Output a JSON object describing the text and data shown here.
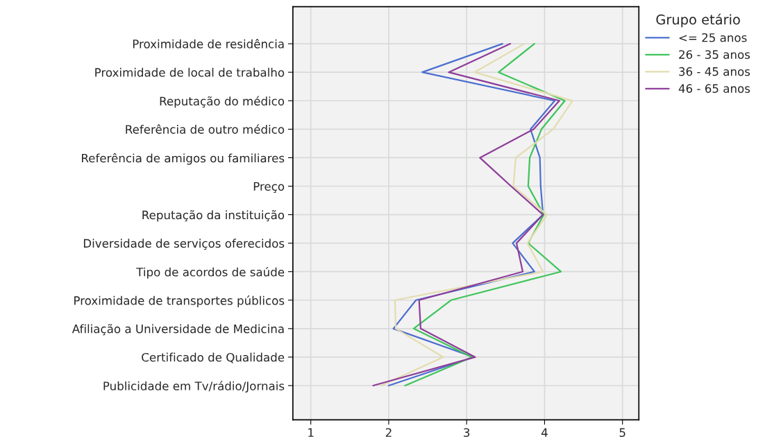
{
  "chart_data": {
    "type": "line",
    "orientation": "horizontal",
    "legend_title": "Grupo etário",
    "legend": "top right",
    "grid": true,
    "marker": "none",
    "line_style": "solid",
    "categories": [
      "Proximidade de residência",
      "Proximidade de local de trabalho",
      "Reputação do médico",
      "Referência de outro médico",
      "Referência de amigos ou familiares",
      "Preço",
      "Reputação da instituição",
      "Diversidade de serviços oferecidos",
      "Tipo de acordos de saúde",
      "Proximidade de transportes públicos",
      "Afiliação a Universidade de Medicina",
      "Certificado de Qualidade",
      "Publicidade em Tv/rádio/Jornais"
    ],
    "xlim": [
      0.77,
      5.21
    ],
    "xticks": [
      1,
      2,
      3,
      4,
      5
    ],
    "series": [
      {
        "name": "<= 25 anos",
        "color": "#4b6fcf",
        "values": [
          3.46,
          2.43,
          4.13,
          3.82,
          3.94,
          3.95,
          3.98,
          3.59,
          3.87,
          2.35,
          2.06,
          3.09,
          2.0
        ]
      },
      {
        "name": "26 - 35 anos",
        "color": "#3ec45a",
        "values": [
          3.87,
          3.41,
          4.26,
          3.96,
          3.81,
          3.79,
          3.99,
          3.79,
          4.21,
          2.8,
          2.32,
          3.07,
          2.21
        ]
      },
      {
        "name": "36 - 45 anos",
        "color": "#e3dcae",
        "values": [
          3.74,
          3.1,
          4.36,
          4.11,
          3.63,
          3.6,
          4.03,
          3.78,
          3.98,
          2.08,
          2.09,
          2.7,
          1.9
        ]
      },
      {
        "name": "46 - 65 anos",
        "color": "#8e3d9a",
        "values": [
          3.56,
          2.77,
          4.19,
          3.86,
          3.17,
          3.57,
          3.98,
          3.64,
          3.72,
          2.39,
          2.41,
          3.11,
          1.8
        ]
      }
    ]
  }
}
